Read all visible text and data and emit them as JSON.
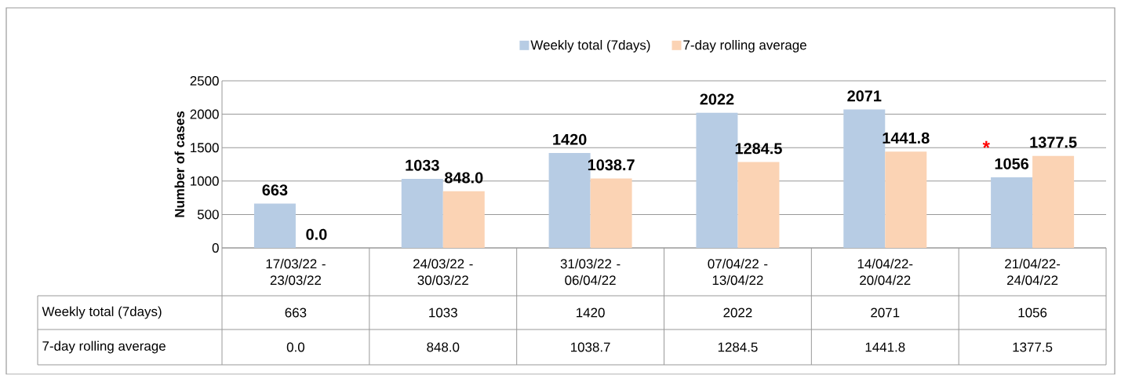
{
  "chart_data": {
    "type": "bar",
    "ylabel": "Number of cases",
    "categories": [
      "17/03/22 - 23/03/22",
      "24/03/22 - 30/03/22",
      "31/03/22 - 06/04/22",
      "07/04/22 - 13/04/22",
      "14/04/22-20/04/22",
      "21/04/22-24/04/22"
    ],
    "series": [
      {
        "name": "Weekly total (7days)",
        "color": "#b7cce4",
        "values": [
          663,
          1033,
          1420,
          2022,
          2071,
          1056
        ],
        "value_labels": [
          "663",
          "1033",
          "1420",
          "2022",
          "2071",
          "1056"
        ]
      },
      {
        "name": "7-day rolling average",
        "color": "#fbd3b4",
        "values": [
          0.0,
          848.0,
          1038.7,
          1284.5,
          1441.8,
          1377.5
        ],
        "value_labels": [
          "0.0",
          "848.0",
          "1038.7",
          "1284.5",
          "1441.8",
          "1377.5"
        ]
      }
    ],
    "ylim": [
      0,
      2500
    ],
    "yticks": [
      0,
      500,
      1000,
      1500,
      2000,
      2500
    ],
    "grid": "y",
    "legend": "top",
    "annotations": [
      "*"
    ]
  }
}
